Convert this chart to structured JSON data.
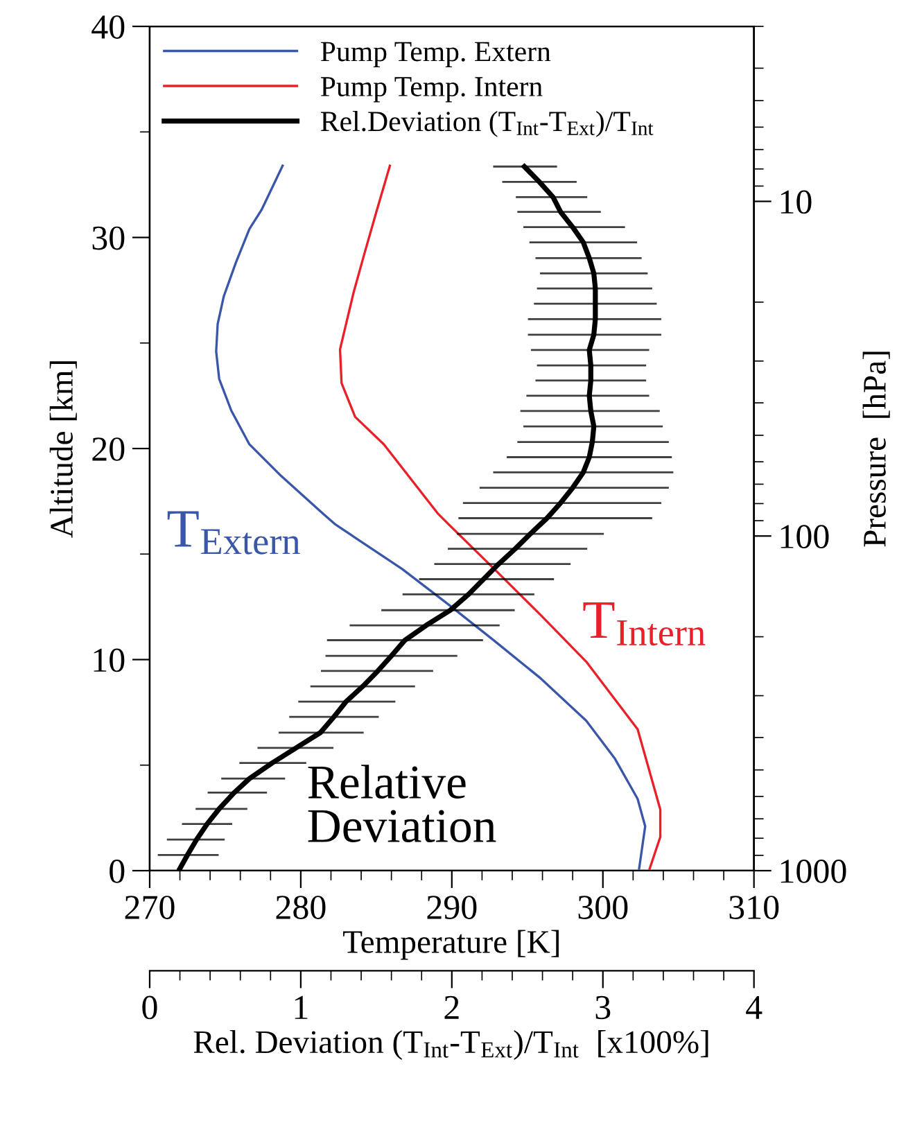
{
  "chart_data": {
    "type": "line",
    "xlabel": "Temperature [K]",
    "ylabel": "Altitude [km]",
    "y2label": "Pressure  [hPa]",
    "x2label": "Rel. Deviation (T$_{Int}$-T$_{Ext}$)/T$_{Int}$  [x100%]",
    "xlim": [
      270,
      310
    ],
    "xticks": [
      270,
      280,
      290,
      300,
      310
    ],
    "ylim": [
      0,
      40
    ],
    "yticks": [
      0,
      10,
      20,
      30,
      40
    ],
    "x2lim": [
      0,
      4
    ],
    "x2ticks": [
      0,
      1,
      2,
      3,
      4
    ],
    "y2lim": [
      1000,
      3
    ],
    "y2ticks": [
      10,
      100,
      1000
    ],
    "log": "y2",
    "legend": "top left",
    "series": [
      {
        "name": "Pump Temp. Extern",
        "color": "#3a56a8",
        "x": [
          278.8,
          277.4,
          276.6,
          275.7,
          274.9,
          274.5,
          274.4,
          274.6,
          275.4,
          276.6,
          278.7,
          281.5,
          282.3,
          286.7,
          289.8,
          292.8,
          295.9,
          298.9,
          300.8,
          302.3,
          302.8,
          302.4
        ],
        "values": [
          33.4,
          31.3,
          30.4,
          28.8,
          27.2,
          25.9,
          24.6,
          23.3,
          21.8,
          20.2,
          18.7,
          16.9,
          16.4,
          14.3,
          12.6,
          10.9,
          9.1,
          7.1,
          5.3,
          3.4,
          2.1,
          0.1
        ]
      },
      {
        "name": "Pump Temp. Intern",
        "color": "#e8202a",
        "x": [
          285.9,
          285.0,
          284.2,
          283.5,
          283.0,
          282.6,
          282.7,
          283.6,
          285.5,
          289.1,
          289.8,
          292.8,
          295.9,
          298.9,
          302.3,
          303.8,
          303.8,
          303.1
        ],
        "values": [
          33.4,
          31.2,
          29.2,
          27.4,
          25.9,
          24.7,
          23.1,
          21.5,
          20.2,
          16.9,
          16.4,
          14.3,
          12.1,
          9.9,
          6.7,
          2.9,
          1.6,
          0.1
        ]
      },
      {
        "name": "Rel.Deviation (T$_{Int}$-T$_{Ext}$)/T$_{Int}$",
        "color": "#000000",
        "axis": "x2",
        "x": [
          2.48,
          2.58,
          2.67,
          2.72,
          2.8,
          2.87,
          2.91,
          2.94,
          2.95,
          2.95,
          2.95,
          2.94,
          2.91,
          2.92,
          2.92,
          2.91,
          2.92,
          2.94,
          2.93,
          2.91,
          2.87,
          2.8,
          2.72,
          2.63,
          2.52,
          2.42,
          2.31,
          2.21,
          2.11,
          1.99,
          1.83,
          1.69,
          1.6,
          1.51,
          1.41,
          1.3,
          1.22,
          1.13,
          0.97,
          0.81,
          0.66,
          0.56,
          0.46,
          0.38,
          0.31,
          0.25,
          0.2
        ],
        "values": [
          33.36,
          32.63,
          31.91,
          31.21,
          30.49,
          29.77,
          29.02,
          28.3,
          27.58,
          26.86,
          26.13,
          25.39,
          24.67,
          23.94,
          23.22,
          22.5,
          21.78,
          21.05,
          20.31,
          19.59,
          18.87,
          18.14,
          17.42,
          16.7,
          15.96,
          15.25,
          14.53,
          13.81,
          13.09,
          12.34,
          11.62,
          10.92,
          10.18,
          9.46,
          8.73,
          8.01,
          7.29,
          6.54,
          5.82,
          5.1,
          4.36,
          3.7,
          2.93,
          2.21,
          1.47,
          0.74,
          0.1
        ],
        "xerrors": [
          [
            2.28,
            2.69
          ],
          [
            2.34,
            2.82
          ],
          [
            2.43,
            2.89
          ],
          [
            2.44,
            2.98
          ],
          [
            2.48,
            3.14
          ],
          [
            2.52,
            3.22
          ],
          [
            2.56,
            3.25
          ],
          [
            2.59,
            3.29
          ],
          [
            2.57,
            3.32
          ],
          [
            2.55,
            3.35
          ],
          [
            2.51,
            3.38
          ],
          [
            2.51,
            3.38
          ],
          [
            2.53,
            3.3
          ],
          [
            2.57,
            3.28
          ],
          [
            2.56,
            3.28
          ],
          [
            2.5,
            3.3
          ],
          [
            2.46,
            3.37
          ],
          [
            2.48,
            3.39
          ],
          [
            2.44,
            3.43
          ],
          [
            2.37,
            3.45
          ],
          [
            2.28,
            3.46
          ],
          [
            2.19,
            3.43
          ],
          [
            2.08,
            3.38
          ],
          [
            2.05,
            3.32
          ],
          [
            2.04,
            3.0
          ],
          [
            1.98,
            2.89
          ],
          [
            1.89,
            2.78
          ],
          [
            1.79,
            2.67
          ],
          [
            1.68,
            2.54
          ],
          [
            1.54,
            2.41
          ],
          [
            1.33,
            2.31
          ],
          [
            1.18,
            2.2
          ],
          [
            1.17,
            2.03
          ],
          [
            1.14,
            1.87
          ],
          [
            1.07,
            1.75
          ],
          [
            0.99,
            1.62
          ],
          [
            0.93,
            1.51
          ],
          [
            0.86,
            1.41
          ],
          [
            0.72,
            1.21
          ],
          [
            0.6,
            1.03
          ],
          [
            0.48,
            0.89
          ],
          [
            0.39,
            0.77
          ],
          [
            0.31,
            0.64
          ],
          [
            0.22,
            0.54
          ],
          [
            0.12,
            0.49
          ],
          [
            0.06,
            0.45
          ],
          null
        ]
      }
    ],
    "annotations": [
      "T$_{Extern}$",
      "T$_{Intern}$",
      "Relative\nDeviation"
    ]
  }
}
